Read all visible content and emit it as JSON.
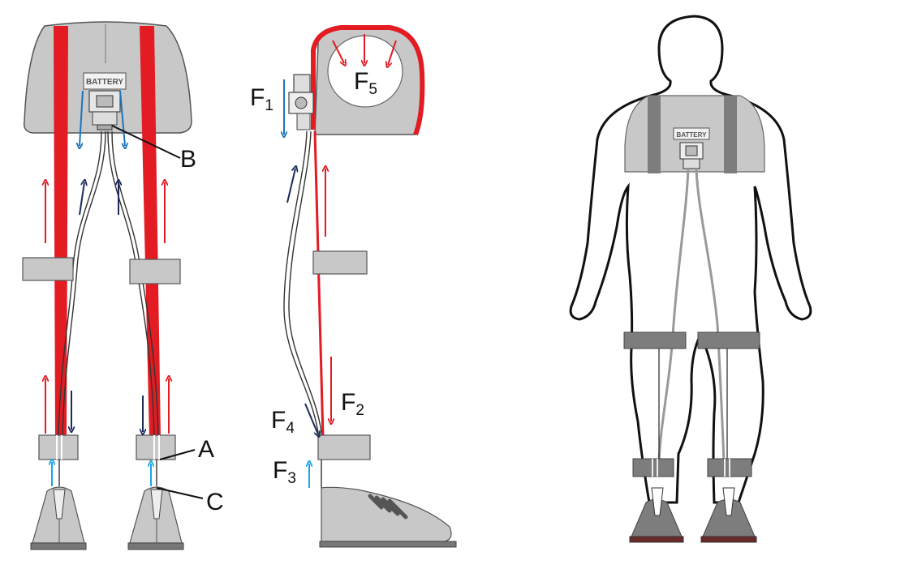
{
  "labels": {
    "battery_front": "BATTERY",
    "battery_back": "BATTERY",
    "a": "A",
    "b": "B",
    "c": "C",
    "f1": {
      "main": "F",
      "sub": "1"
    },
    "f2": {
      "main": "F",
      "sub": "2"
    },
    "f3": {
      "main": "F",
      "sub": "3"
    },
    "f4": {
      "main": "F",
      "sub": "4"
    },
    "f5": {
      "main": "F",
      "sub": "5"
    }
  },
  "colors": {
    "strap_red": "#e31b23",
    "arrow_red": "#e31b23",
    "arrow_navy": "#1a2b5c",
    "arrow_blue": "#1c74b8",
    "arrow_cyan": "#1aa6e0",
    "pad_gray": "#c8c8c8",
    "band_dark": "#7d7d7d",
    "outline": "#333333"
  }
}
